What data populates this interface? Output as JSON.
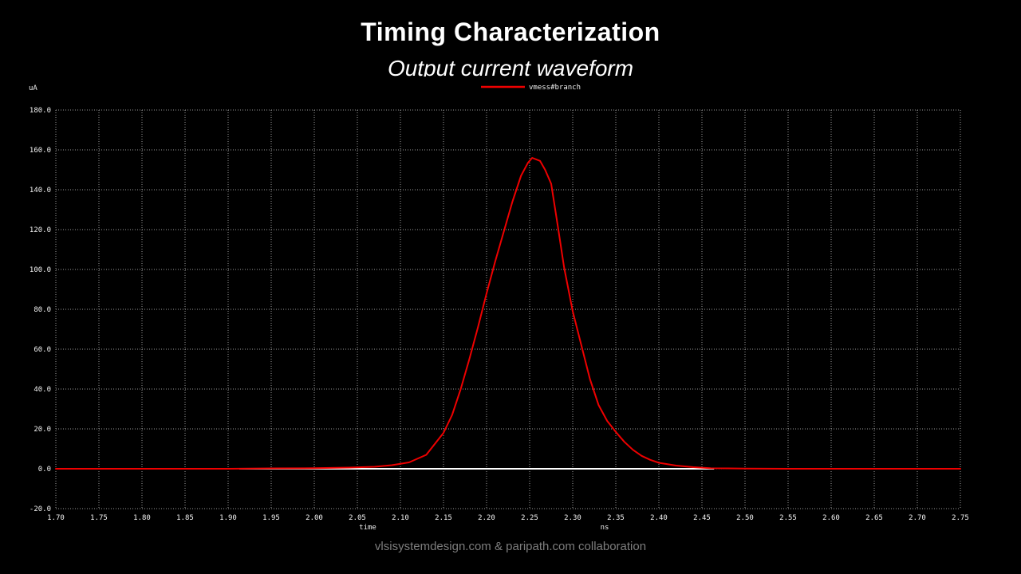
{
  "slide": {
    "title": "Timing Characterization",
    "subtitle": "Output current waveform",
    "footer": "vlsisystemdesign.com & paripath.com collaboration"
  },
  "chart_data": {
    "type": "line",
    "title": "Output current waveform",
    "xlabel": "time",
    "x_unit": "ns",
    "y_unit": "uA",
    "xlim": [
      1.7,
      2.75
    ],
    "ylim": [
      -20.0,
      180.0
    ],
    "grid": true,
    "grid_style": "dotted",
    "grid_color": "#9b9b9b",
    "background_color": "#000000",
    "tick_color": "#f2f2f2",
    "x_tick_labels": [
      "1.70",
      "1.75",
      "1.80",
      "1.85",
      "1.90",
      "1.95",
      "2.00",
      "2.05",
      "2.10",
      "2.15",
      "2.20",
      "2.25",
      "2.30",
      "2.35",
      "2.40",
      "2.45",
      "2.50",
      "2.55",
      "2.60",
      "2.65",
      "2.70",
      "2.75"
    ],
    "y_tick_labels": [
      "180.0",
      "160.0",
      "140.0",
      "120.0",
      "100.0",
      "80.0",
      "60.0",
      "40.0",
      "20.0",
      "0.0",
      "-20.0"
    ],
    "legend": [
      {
        "name": "vmess#branch",
        "color": "#ee0000"
      }
    ],
    "legend_position": "top-center",
    "series": [
      {
        "name": "vmess#branch",
        "color": "#ee0000",
        "points": [
          [
            1.7,
            0
          ],
          [
            1.8,
            0
          ],
          [
            1.9,
            0
          ],
          [
            1.95,
            0.2
          ],
          [
            2.0,
            0.3
          ],
          [
            2.04,
            0.6
          ],
          [
            2.07,
            1.0
          ],
          [
            2.09,
            1.8
          ],
          [
            2.11,
            3.2
          ],
          [
            2.13,
            7.0
          ],
          [
            2.15,
            18
          ],
          [
            2.16,
            27
          ],
          [
            2.17,
            40
          ],
          [
            2.18,
            55
          ],
          [
            2.19,
            71
          ],
          [
            2.2,
            88
          ],
          [
            2.21,
            104
          ],
          [
            2.22,
            119
          ],
          [
            2.23,
            134
          ],
          [
            2.24,
            147
          ],
          [
            2.248,
            153.5
          ],
          [
            2.253,
            156
          ],
          [
            2.262,
            154.5
          ],
          [
            2.268,
            150
          ],
          [
            2.275,
            143
          ],
          [
            2.283,
            121
          ],
          [
            2.29,
            101
          ],
          [
            2.3,
            79
          ],
          [
            2.31,
            62
          ],
          [
            2.32,
            45
          ],
          [
            2.33,
            32
          ],
          [
            2.34,
            24
          ],
          [
            2.35,
            18.5
          ],
          [
            2.36,
            13.5
          ],
          [
            2.37,
            9.5
          ],
          [
            2.38,
            6.5
          ],
          [
            2.39,
            4.5
          ],
          [
            2.4,
            3.0
          ],
          [
            2.42,
            1.6
          ],
          [
            2.44,
            0.8
          ],
          [
            2.46,
            0.3
          ],
          [
            2.5,
            0.1
          ],
          [
            2.55,
            0
          ],
          [
            2.6,
            0
          ],
          [
            2.75,
            0
          ]
        ]
      }
    ],
    "zero_marker": {
      "description": "white horizontal marker segment at 0 uA",
      "y": 0,
      "x_start": 1.913,
      "x_end": 2.464,
      "color": "#ffffff"
    },
    "annotations": {
      "peak_value_uA": 156,
      "peak_time_ns": 2.253
    }
  }
}
